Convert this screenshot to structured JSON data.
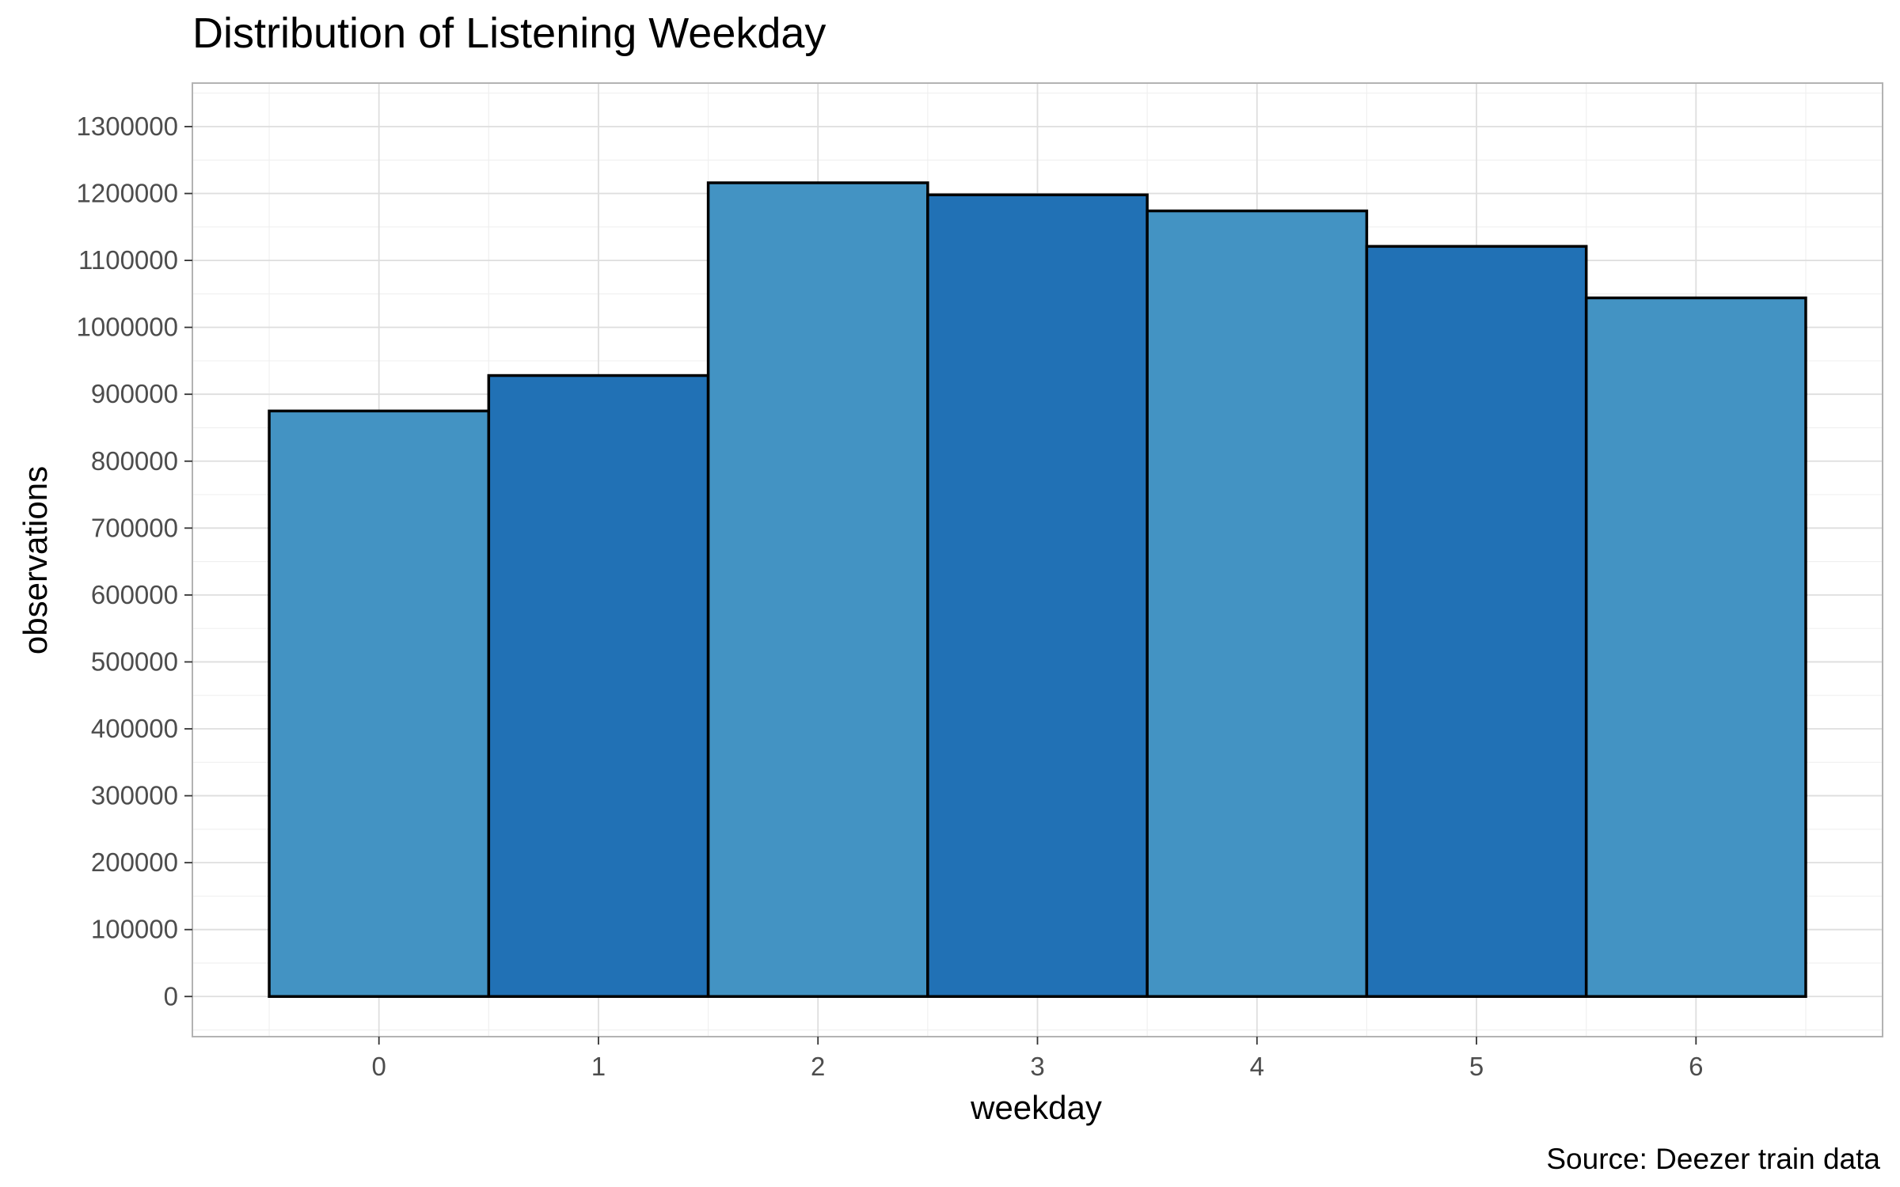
{
  "chart_data": {
    "type": "bar",
    "title": "Distribution of Listening Weekday",
    "xlabel": "weekday",
    "ylabel": "observations",
    "caption": "Source: Deezer train data",
    "categories": [
      "0",
      "1",
      "2",
      "3",
      "4",
      "5",
      "6"
    ],
    "values": [
      875000,
      928000,
      1216000,
      1198000,
      1174000,
      1121000,
      1044000
    ],
    "fill_colors": [
      "#4393c3",
      "#2171b5",
      "#4393c3",
      "#2171b5",
      "#4393c3",
      "#2171b5",
      "#4393c3"
    ],
    "bar_outline": "#000000",
    "xlim": [
      -0.85,
      6.85
    ],
    "ylim": [
      -60000,
      1365000
    ],
    "yticks": [
      0,
      100000,
      200000,
      300000,
      400000,
      500000,
      600000,
      700000,
      800000,
      900000,
      1000000,
      1100000,
      1200000,
      1300000
    ],
    "grid": true,
    "legend": "none"
  }
}
